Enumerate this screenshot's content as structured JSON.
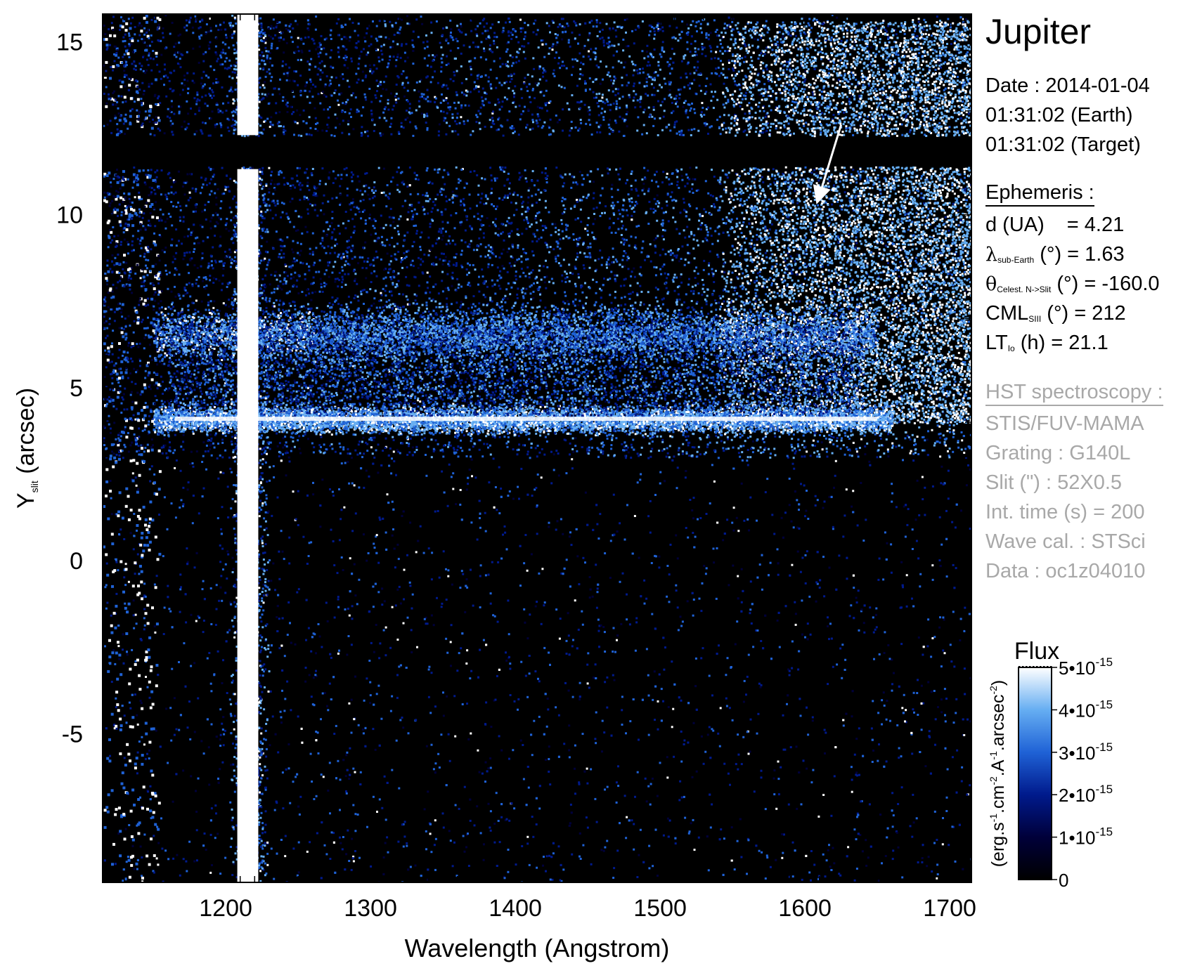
{
  "chart_data": {
    "type": "heatmap",
    "title": "",
    "xlabel": "Wavelength (Angstrom)",
    "ylabel_main": "Y",
    "ylabel_sub": "slit",
    "ylabel_rest": " (arcsec)",
    "xlim": [
      1115,
      1715
    ],
    "ylim": [
      -9.3,
      15.8
    ],
    "x_ticks": [
      1200,
      1300,
      1400,
      1500,
      1600,
      1700
    ],
    "x_tick_labels": [
      "1200",
      "1300",
      "1400",
      "1500",
      "1600",
      "1700"
    ],
    "y_ticks": [
      -5,
      0,
      5,
      10,
      15
    ],
    "y_tick_labels": [
      "-5",
      "0",
      "5",
      "10",
      "15"
    ],
    "colorscale": {
      "colors": [
        "#000000",
        "#00003a",
        "#001a8c",
        "#1f62d6",
        "#66aef2",
        "#ffffff"
      ],
      "range": [
        0,
        5e-15
      ]
    },
    "features": {
      "lyman_alpha_line_wavelength": 1216,
      "equatorial_band_y": 4.1,
      "upper_band_y": 6.6,
      "torus_region_y": [
        4,
        15.6
      ],
      "slit_gap_y": [
        11.4,
        12.3
      ]
    },
    "arrow": {
      "from": [
        1625,
        12.6
      ],
      "to": [
        1608,
        10.3
      ]
    },
    "colorbar": {
      "title": "Flux",
      "label_parts": [
        "(erg.s",
        "-1",
        ".cm",
        "-2",
        ".A",
        "-1",
        ".arcsec",
        "-2",
        ")"
      ],
      "ticks": [
        {
          "value": 0,
          "base": "0",
          "exp": ""
        },
        {
          "value": 1e-15,
          "base": "1•10",
          "exp": "-15"
        },
        {
          "value": 2e-15,
          "base": "2•10",
          "exp": "-15"
        },
        {
          "value": 3e-15,
          "base": "3•10",
          "exp": "-15"
        },
        {
          "value": 4e-15,
          "base": "4•10",
          "exp": "-15"
        },
        {
          "value": 5e-15,
          "base": "5•10",
          "exp": "-15"
        }
      ]
    }
  },
  "info": {
    "title": "Jupiter",
    "date": "Date : 2014-01-04",
    "time_earth": "01:31:02 (Earth)",
    "time_target": "01:31:02 (Target)",
    "ephemeris_header": "Ephemeris :",
    "d_label": "d (UA)",
    "d_value": "= 4.21",
    "lambda_sym": "λ",
    "lambda_sub": "sub-Earth",
    "lambda_rest": " (°)  = 1.63",
    "theta_sym": "θ",
    "theta_sub": "Celest. N->Slit",
    "theta_rest": " (°) = -160.0",
    "cml_main": "CML",
    "cml_sub": "SIII",
    "cml_rest": " (°) = 212",
    "lt_main": "LT",
    "lt_sub": "Io",
    "lt_rest": " (h) = 21.1",
    "hst_header": "HST spectroscopy :",
    "instrument": "STIS/FUV-MAMA",
    "grating": "Grating : G140L",
    "slit": "Slit (\") : 52X0.5",
    "int_time": "Int. time (s) = 200",
    "wave_cal": "Wave cal. : STSci",
    "data_id": "Data : oc1z04010"
  }
}
